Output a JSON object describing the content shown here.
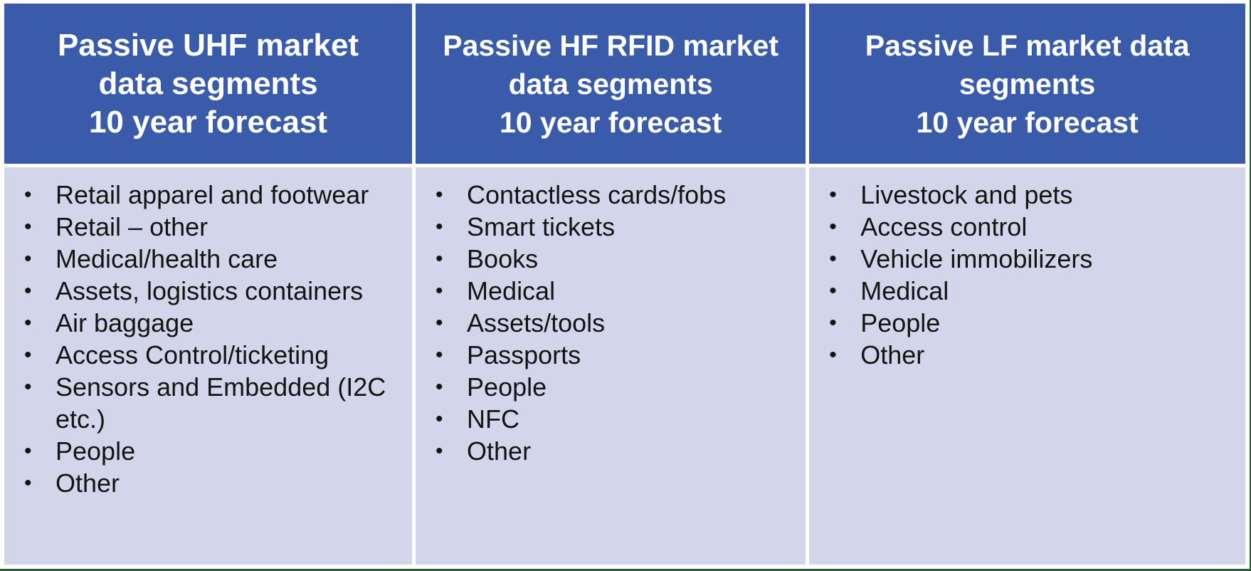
{
  "colors": {
    "header_bg": "#3a5ba9",
    "body_bg": "#d3d6eb",
    "accent_line": "#2f5d3e",
    "header_text": "#ffffff",
    "text_color": "#141414"
  },
  "icons": {
    "bullet": "•"
  },
  "table": {
    "columns": [
      {
        "id": "uhf",
        "title_lines": [
          "Passive UHF market",
          "data segments",
          "10 year forecast"
        ],
        "items": [
          "Retail apparel and footwear",
          "Retail – other",
          "Medical/health care",
          "Assets, logistics containers",
          "Air baggage",
          "Access Control/ticketing",
          "Sensors and Embedded (I2C etc.)",
          "People",
          "Other"
        ]
      },
      {
        "id": "hf",
        "title_lines": [
          "Passive HF RFID market",
          "data segments",
          "10 year forecast"
        ],
        "items": [
          "Contactless cards/fobs",
          "Smart tickets",
          "Books",
          "Medical",
          "Assets/tools",
          "Passports",
          "People",
          "NFC",
          "Other"
        ]
      },
      {
        "id": "lf",
        "title_lines": [
          "Passive LF market data",
          "segments",
          "10 year forecast"
        ],
        "items": [
          "Livestock and pets",
          "Access control",
          "Vehicle immobilizers",
          "Medical",
          "People",
          "Other"
        ]
      }
    ]
  }
}
